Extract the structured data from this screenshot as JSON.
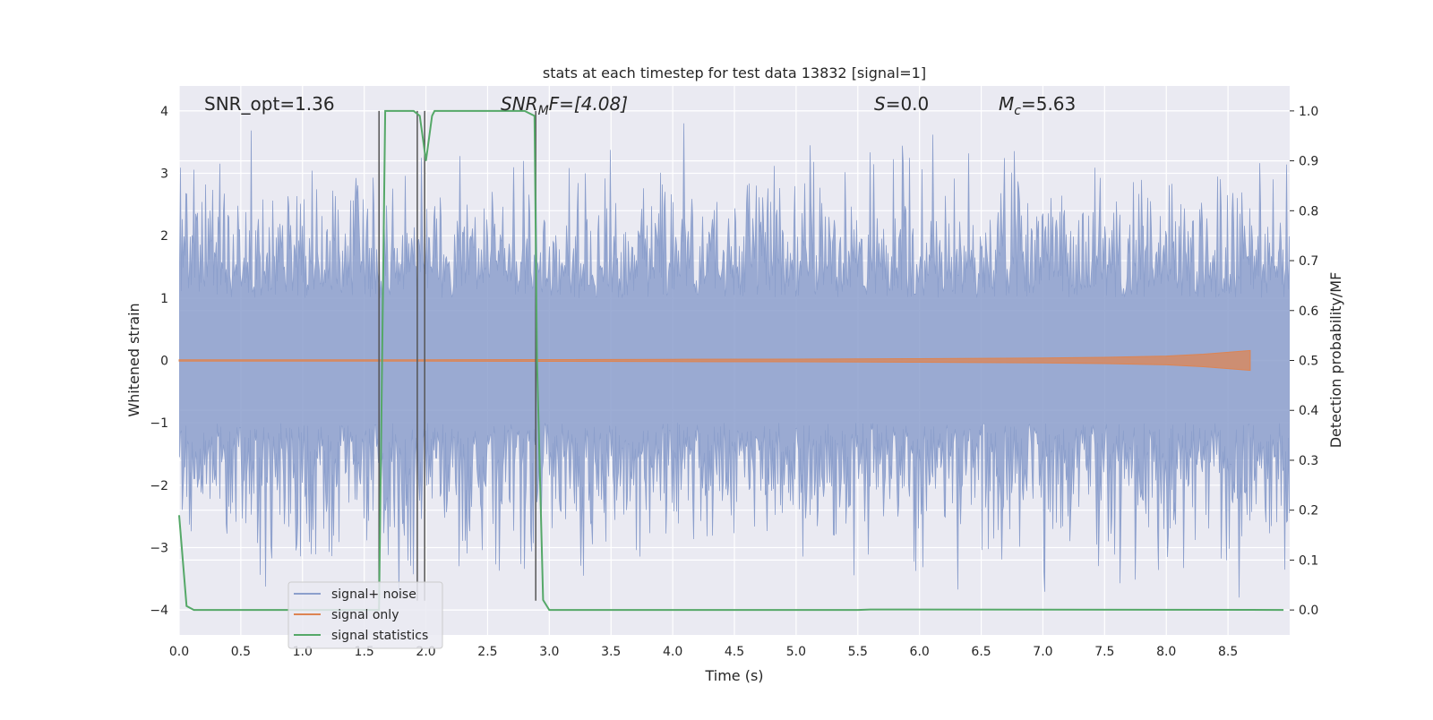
{
  "chart_data": {
    "type": "line",
    "title": "stats at each timestep for test data 13832 [signal=1]",
    "xlabel": "Time (s)",
    "ylabel_left": "Whitened strain",
    "ylabel_right": "Detection probability/MF",
    "xlim": [
      0.0,
      9.0
    ],
    "ylim_left": [
      -4.4,
      4.4
    ],
    "ylim_right": [
      -0.05,
      1.05
    ],
    "x_ticks": [
      "0.0",
      "0.5",
      "1.0",
      "1.5",
      "2.0",
      "2.5",
      "3.0",
      "3.5",
      "4.0",
      "4.5",
      "5.0",
      "5.5",
      "6.0",
      "6.5",
      "7.0",
      "7.5",
      "8.0",
      "8.5"
    ],
    "y_left_ticks": [
      "4",
      "3",
      "2",
      "1",
      "0",
      "−1",
      "−2",
      "−3",
      "−4"
    ],
    "y_right_ticks": [
      "1.0",
      "0.9",
      "0.8",
      "0.7",
      "0.6",
      "0.5",
      "0.4",
      "0.3",
      "0.2",
      "0.1",
      "0.0"
    ],
    "grid": true,
    "legend_position": "lower-left",
    "annotations": {
      "snr_opt": "SNR_opt=1.36",
      "snr_mf_main": "SNR",
      "snr_mf_sub": "M",
      "snr_mf_rest": "F=[4.08]",
      "s_main": "S",
      "s_rest": "=0.0",
      "mc_main": "M",
      "mc_sub": "c",
      "mc_rest": "=5.63"
    },
    "vertical_lines_x": [
      1.62,
      1.93,
      1.99,
      2.89
    ],
    "series": [
      {
        "name": "signal+ noise",
        "color": "#8c9fcc",
        "axis": "left",
        "description_range": [
          -3.8,
          3.8
        ]
      },
      {
        "name": "signal only",
        "color": "#dd8452",
        "axis": "left",
        "x": [
          0.0,
          1.0,
          2.0,
          3.0,
          4.0,
          5.0,
          6.0,
          7.0,
          7.5,
          8.0,
          8.3,
          8.5,
          8.68
        ],
        "amplitude": [
          0.01,
          0.01,
          0.012,
          0.015,
          0.018,
          0.022,
          0.028,
          0.04,
          0.05,
          0.07,
          0.1,
          0.13,
          0.16
        ]
      },
      {
        "name": "signal statistics",
        "color": "#55a868",
        "axis": "right",
        "x": [
          0.0,
          0.06,
          0.12,
          1.6,
          1.62,
          1.67,
          1.7,
          1.9,
          1.95,
          2.0,
          2.05,
          2.07,
          2.8,
          2.88,
          2.9,
          2.95,
          3.0,
          5.5,
          5.6,
          8.95
        ],
        "y": [
          0.19,
          0.008,
          0.0,
          0.0,
          0.0,
          1.0,
          1.0,
          1.0,
          0.99,
          0.9,
          0.99,
          1.0,
          1.0,
          0.99,
          0.5,
          0.02,
          0.0,
          0.0,
          0.001,
          0.0
        ]
      }
    ]
  }
}
